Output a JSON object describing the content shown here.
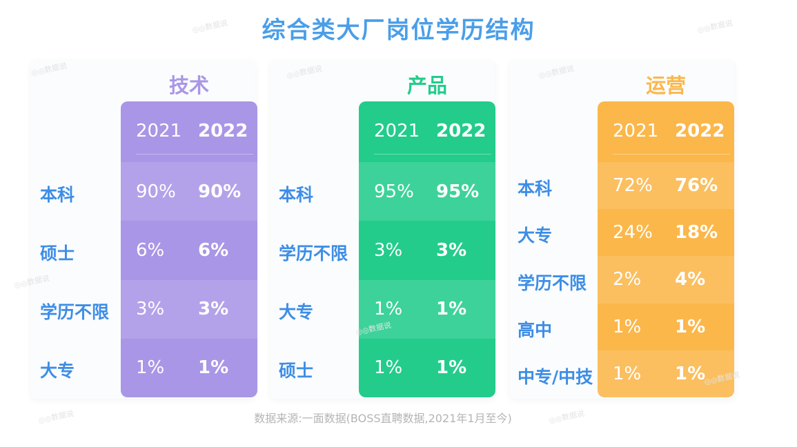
{
  "title": "综合类大厂岗位学历结构",
  "source": "数据来源:一面数据(BOSS直聘数据,2021年1月至今)",
  "watermark": "数据说",
  "colors": {
    "title": "#4a9ee8",
    "label": "#3d8de6",
    "tech": "#a996e6",
    "product": "#23cc8b",
    "ops": "#fbb74a"
  },
  "chart_data": [
    {
      "type": "table",
      "title": "技术",
      "columns": [
        "2021",
        "2022"
      ],
      "rows": [
        {
          "label": "本科",
          "v2021": "90%",
          "v2022": "90%"
        },
        {
          "label": "硕士",
          "v2021": "6%",
          "v2022": "6%"
        },
        {
          "label": "学历不限",
          "v2021": "3%",
          "v2022": "3%"
        },
        {
          "label": "大专",
          "v2021": "1%",
          "v2022": "1%"
        }
      ]
    },
    {
      "type": "table",
      "title": "产品",
      "columns": [
        "2021",
        "2022"
      ],
      "rows": [
        {
          "label": "本科",
          "v2021": "95%",
          "v2022": "95%"
        },
        {
          "label": "学历不限",
          "v2021": "3%",
          "v2022": "3%"
        },
        {
          "label": "大专",
          "v2021": "1%",
          "v2022": "1%"
        },
        {
          "label": "硕士",
          "v2021": "1%",
          "v2022": "1%"
        }
      ]
    },
    {
      "type": "table",
      "title": "运营",
      "columns": [
        "2021",
        "2022"
      ],
      "rows": [
        {
          "label": "本科",
          "v2021": "72%",
          "v2022": "76%"
        },
        {
          "label": "大专",
          "v2021": "24%",
          "v2022": "18%"
        },
        {
          "label": "学历不限",
          "v2021": "2%",
          "v2022": "4%"
        },
        {
          "label": "高中",
          "v2021": "1%",
          "v2022": "1%"
        },
        {
          "label": "中专/中技",
          "v2021": "1%",
          "v2022": "1%"
        }
      ]
    }
  ]
}
